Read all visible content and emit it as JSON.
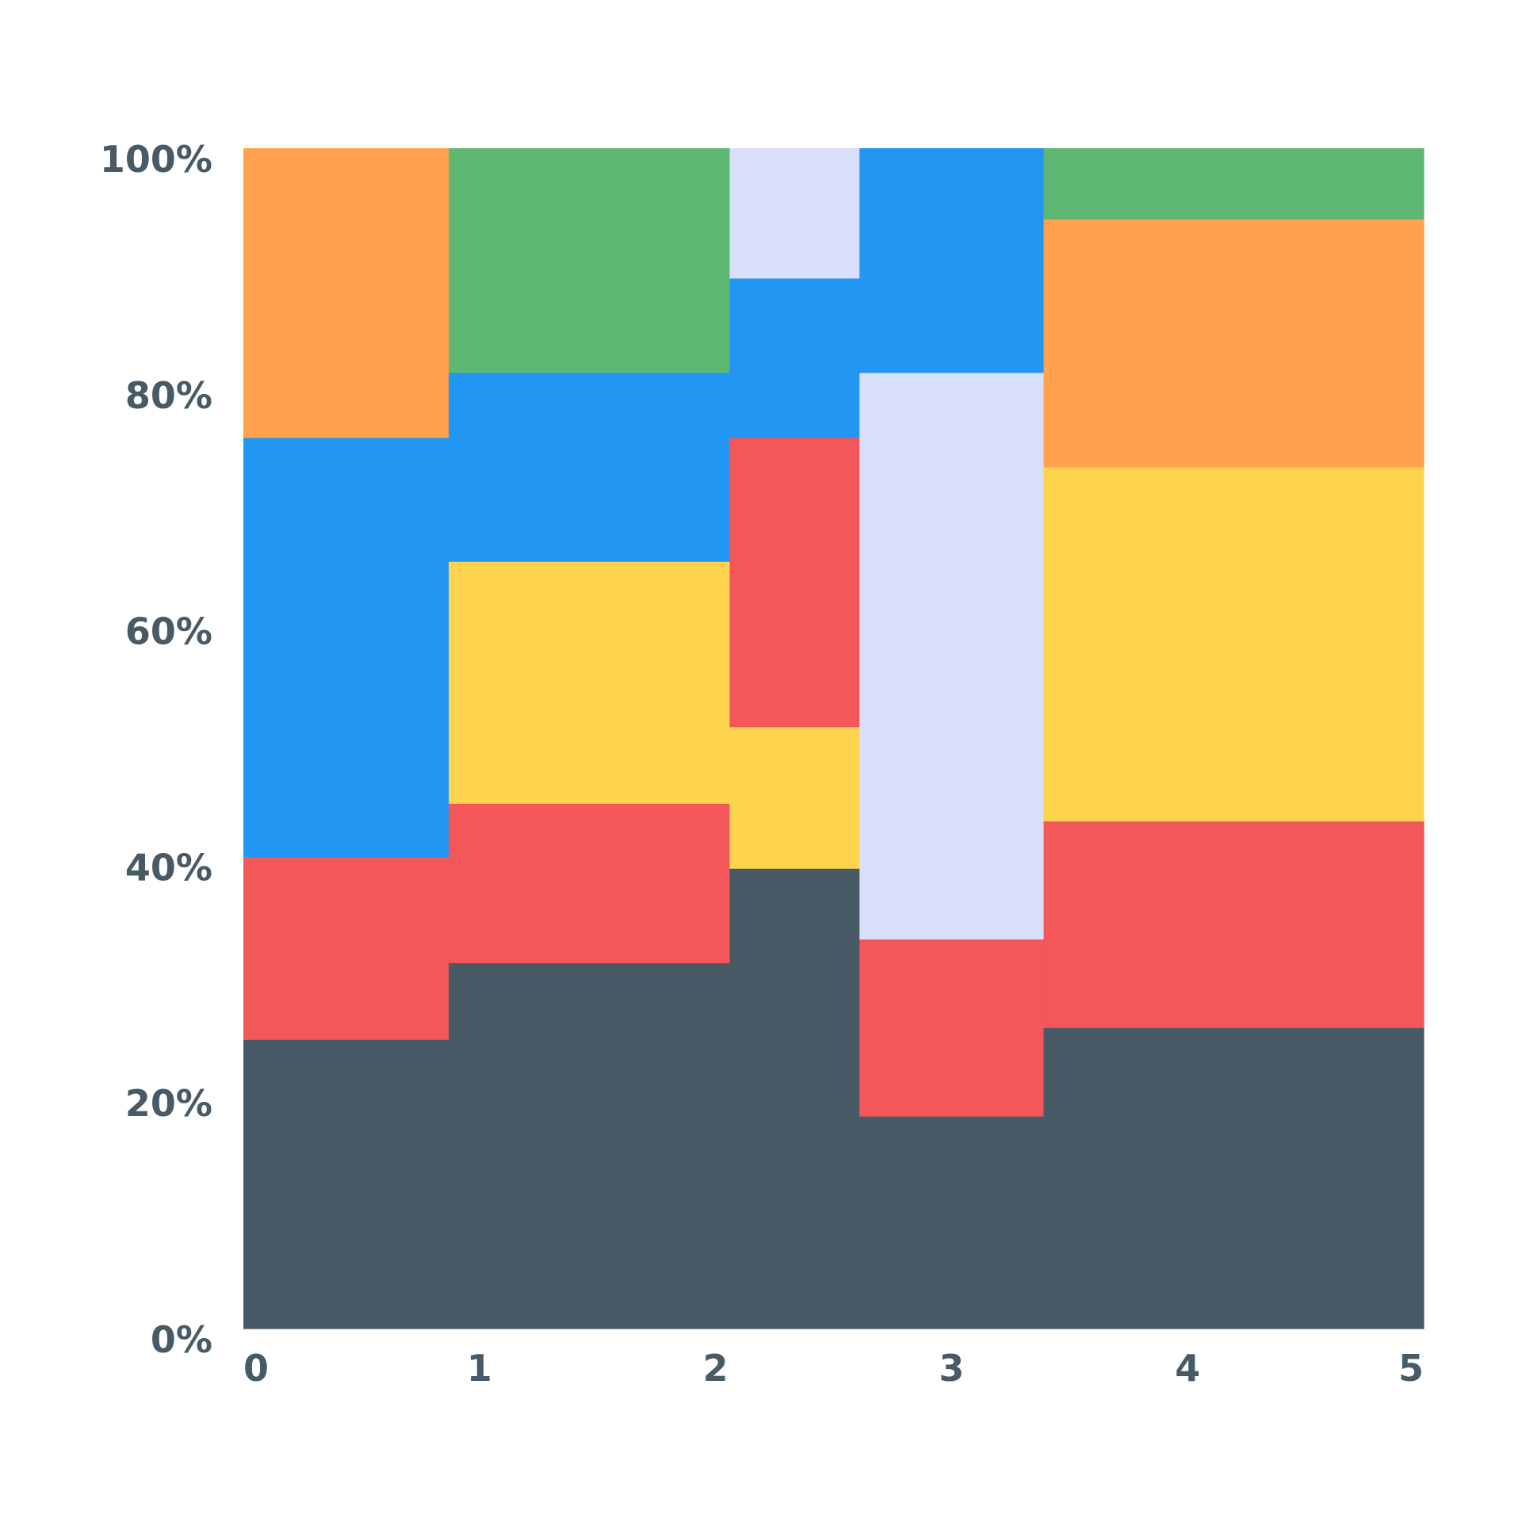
{
  "chart_data": {
    "type": "marimekko",
    "title": "",
    "xlabel": "",
    "ylabel": "",
    "x_ticks": [
      "0",
      "1",
      "2",
      "3",
      "4",
      "5"
    ],
    "y_ticks": [
      "0%",
      "20%",
      "40%",
      "60%",
      "80%",
      "100%"
    ],
    "xlim": [
      0,
      5
    ],
    "ylim": [
      0,
      100
    ],
    "grid": false,
    "colors": {
      "slate": "#485a66",
      "red": "#f3575a",
      "yellow": "#fed44f",
      "blue": "#2196f3",
      "orange": "#ffa14f",
      "green": "#5eb874",
      "lavender": "#dadff9"
    },
    "columns": [
      {
        "x_start": 0.0,
        "x_end": 0.87,
        "segments": [
          {
            "color": "slate",
            "value": 24.5
          },
          {
            "color": "red",
            "value": 15.5
          },
          {
            "color": "blue",
            "value": 35.5
          },
          {
            "color": "orange",
            "value": 24.5
          }
        ]
      },
      {
        "x_start": 0.87,
        "x_end": 2.06,
        "segments": [
          {
            "color": "slate",
            "value": 31.0
          },
          {
            "color": "red",
            "value": 13.5
          },
          {
            "color": "yellow",
            "value": 20.5
          },
          {
            "color": "blue",
            "value": 16.0
          },
          {
            "color": "green",
            "value": 19.0
          }
        ]
      },
      {
        "x_start": 2.06,
        "x_end": 2.61,
        "segments": [
          {
            "color": "slate",
            "value": 39.0
          },
          {
            "color": "yellow",
            "value": 12.0
          },
          {
            "color": "red",
            "value": 24.5
          },
          {
            "color": "blue",
            "value": 13.5
          },
          {
            "color": "lavender",
            "value": 11.0
          }
        ]
      },
      {
        "x_start": 2.61,
        "x_end": 3.39,
        "segments": [
          {
            "color": "slate",
            "value": 18.0
          },
          {
            "color": "red",
            "value": 15.0
          },
          {
            "color": "lavender",
            "value": 48.0
          },
          {
            "color": "blue",
            "value": 19.0
          }
        ]
      },
      {
        "x_start": 3.39,
        "x_end": 5.0,
        "segments": [
          {
            "color": "slate",
            "value": 25.5
          },
          {
            "color": "red",
            "value": 17.5
          },
          {
            "color": "yellow",
            "value": 30.0
          },
          {
            "color": "orange",
            "value": 21.0
          },
          {
            "color": "green",
            "value": 6.0
          }
        ]
      }
    ]
  }
}
